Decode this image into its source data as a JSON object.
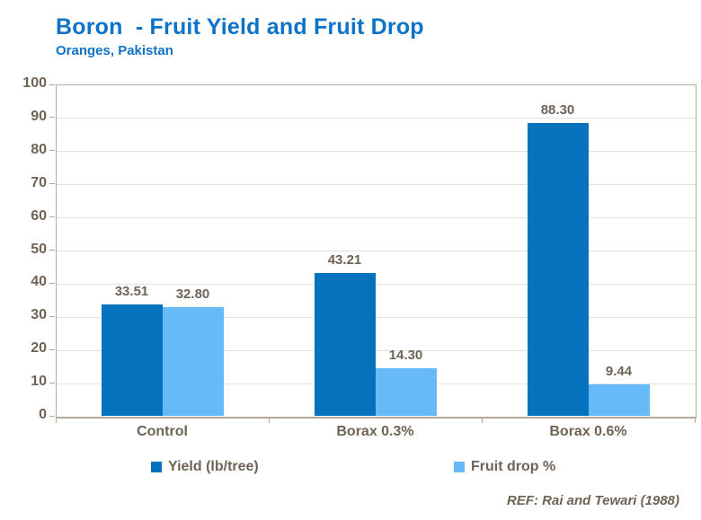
{
  "header": {
    "title": "Boron  - Fruit Yield and Fruit Drop",
    "subtitle": "Oranges, Pakistan"
  },
  "footer": {
    "ref": "REF: Rai and Tewari (1988)"
  },
  "colors": {
    "title_blue": "#0d73c8",
    "yield_bar": "#0572be",
    "fruit_drop_bar": "#67baf8",
    "label_text": "#6f6355",
    "gridline": "#e6e1db",
    "axis_line": "#b2a89c"
  },
  "chart_data": {
    "type": "bar",
    "title": "Boron - Fruit Yield and Fruit Drop",
    "subtitle": "Oranges, Pakistan",
    "categories": [
      "Control",
      "Borax 0.3%",
      "Borax 0.6%"
    ],
    "series": [
      {
        "name": "Yield (lb/tree)",
        "values": [
          33.51,
          43.21,
          88.3
        ],
        "color": "#0572be"
      },
      {
        "name": "Fruit drop %",
        "values": [
          32.8,
          14.3,
          9.44
        ],
        "color": "#67baf8"
      }
    ],
    "ylim": [
      0,
      100
    ],
    "ytick_step": 10,
    "grid": true,
    "data_labels": true,
    "legend_position": "bottom",
    "annotation": "REF: Rai and Tewari (1988)"
  }
}
